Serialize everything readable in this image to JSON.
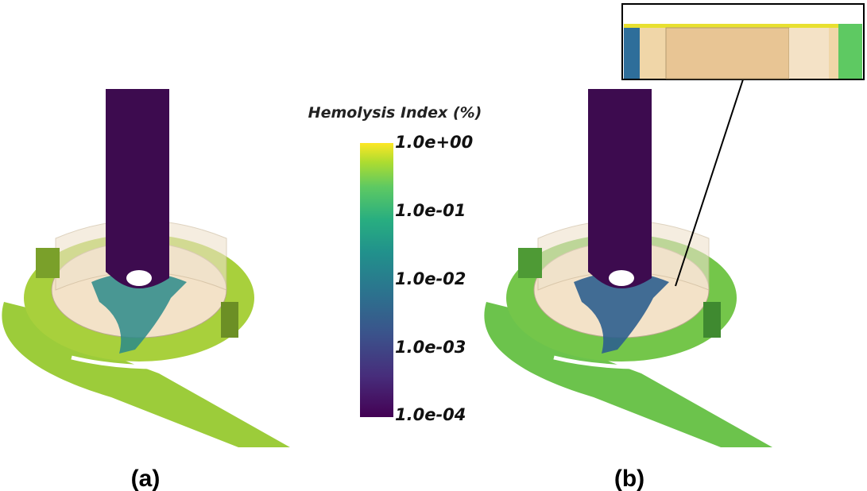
{
  "colorbar": {
    "title": "Hemolysis Index (%)",
    "ticks": [
      "1.0e+00",
      "1.0e-01",
      "1.0e-02",
      "1.0e-03",
      "1.0e-04"
    ]
  },
  "panels": [
    {
      "label": "(a)"
    },
    {
      "label": "(b)"
    }
  ]
}
